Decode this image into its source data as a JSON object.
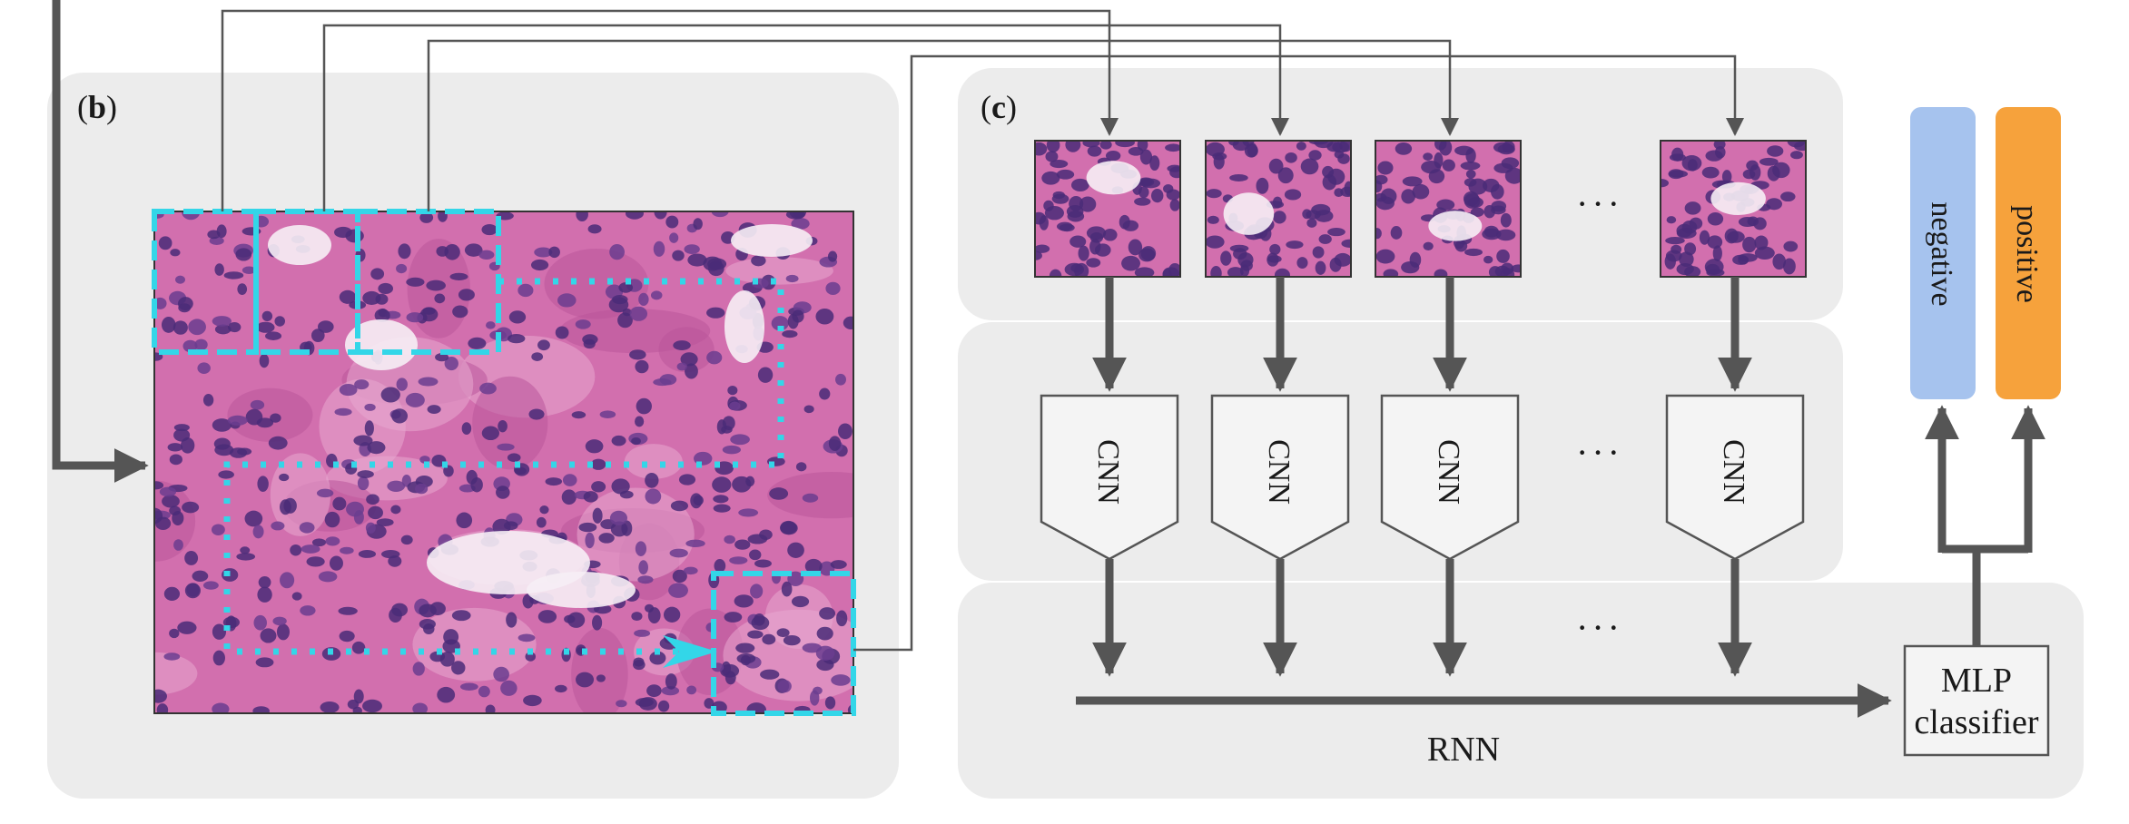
{
  "panels": {
    "b": {
      "label_open": "(",
      "label_letter": "b",
      "label_close": ")"
    },
    "c": {
      "label_open": "(",
      "label_letter": "c",
      "label_close": ")"
    }
  },
  "cnn_label": "CNN",
  "ellipsis": "···",
  "mlp": {
    "line1": "MLP",
    "line2": "classifier"
  },
  "rnn_label": "RNN",
  "outputs": {
    "negative": {
      "label": "negative",
      "color": "#a6c3ee"
    },
    "positive": {
      "label": "positive",
      "color": "#f6a23c"
    }
  },
  "colors": {
    "panel_bg": "#ececec",
    "arrow": "#555555",
    "box_stroke": "#555555",
    "tile_highlight": "#33d6e8",
    "tissue_base": "#d26fae",
    "nucleus": "#4a2c78"
  }
}
